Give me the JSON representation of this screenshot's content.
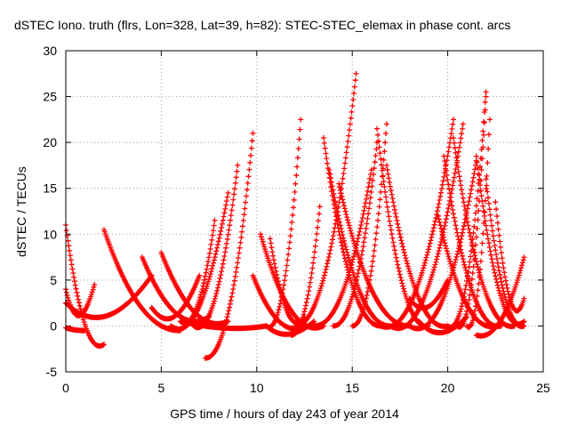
{
  "chart_data": {
    "type": "scatter",
    "title": "dSTEC Iono. truth (flrs, Lon=328, Lat=39, h=82): STEC-STEC_elemax in phase cont. arcs",
    "xlabel": "GPS time / hours of day 243 of year 2014",
    "ylabel": "dSTEC  / TECUs",
    "xlim": [
      0,
      25
    ],
    "ylim": [
      -5,
      30
    ],
    "xticks": [
      "0",
      "5",
      "10",
      "15",
      "20",
      "25"
    ],
    "yticks": [
      "-5",
      "0",
      "5",
      "10",
      "15",
      "20",
      "25",
      "30"
    ],
    "grid": true,
    "marker": "+",
    "color": "#ff0000",
    "arcs": [
      {
        "t0": 0.0,
        "t1": 2.0,
        "a0": 11,
        "a1": -2,
        "min": -3
      },
      {
        "t0": 0.0,
        "t1": 1.5,
        "a0": 4,
        "a1": 4.5,
        "min": -0.5
      },
      {
        "t0": 0.0,
        "t1": 1.0,
        "a0": -0.2,
        "a1": -0.5,
        "min": -0.5
      },
      {
        "t0": 0.0,
        "t1": 4.5,
        "a0": 2.5,
        "a1": 5.5,
        "min": -0.5
      },
      {
        "t0": 2.0,
        "t1": 6.0,
        "a0": 10.5,
        "a1": -0.5,
        "min": -0.5
      },
      {
        "t0": 4.0,
        "t1": 7.5,
        "a0": 7.5,
        "a1": 1.0,
        "min": -0.5
      },
      {
        "t0": 5.0,
        "t1": 8.5,
        "a0": 8.0,
        "a1": 0.5,
        "min": -0.5
      },
      {
        "t0": 4.5,
        "t1": 7.0,
        "a0": 2.0,
        "a1": 5.5,
        "min": -0.5
      },
      {
        "t0": 6.0,
        "t1": 7.8,
        "a0": 0.5,
        "a1": 11.5,
        "min": -0.5
      },
      {
        "t0": 5.5,
        "t1": 8.5,
        "a0": 0.0,
        "a1": 14.5,
        "min": -1.5
      },
      {
        "t0": 7.3,
        "t1": 9.8,
        "a0": -3.5,
        "a1": 21.0,
        "min": -3.5
      },
      {
        "t0": 6.5,
        "t1": 9.0,
        "a0": 0.5,
        "a1": 17.5,
        "min": -2.0
      },
      {
        "t0": 6.0,
        "t1": 10.5,
        "a0": 0.5,
        "a1": 0.0,
        "min": -0.5
      },
      {
        "t0": 9.8,
        "t1": 12.5,
        "a0": 5.5,
        "a1": 0.0,
        "min": -1.0
      },
      {
        "t0": 10.2,
        "t1": 13.5,
        "a0": 10.0,
        "a1": 0.0,
        "min": -1.0
      },
      {
        "t0": 10.7,
        "t1": 12.5,
        "a0": 9.5,
        "a1": 1.0,
        "min": -1.0
      },
      {
        "t0": 10.5,
        "t1": 13.0,
        "a0": 0.0,
        "a1": 0.5,
        "min": -1.5
      },
      {
        "t0": 10.5,
        "t1": 12.3,
        "a0": 0.0,
        "a1": 22.5,
        "min": -1.0
      },
      {
        "t0": 11.8,
        "t1": 13.3,
        "a0": -1.0,
        "a1": 13.0,
        "min": -1.0
      },
      {
        "t0": 13.5,
        "t1": 16.5,
        "a0": 20.5,
        "a1": 0.0,
        "min": 0.0
      },
      {
        "t0": 13.8,
        "t1": 17.0,
        "a0": 17.0,
        "a1": 0.0,
        "min": 0.0
      },
      {
        "t0": 14.3,
        "t1": 18.0,
        "a0": 15.5,
        "a1": 0.0,
        "min": 0.0
      },
      {
        "t0": 12.0,
        "t1": 15.2,
        "a0": 0.0,
        "a1": 27.5,
        "min": 0.0
      },
      {
        "t0": 13.0,
        "t1": 16.0,
        "a0": 0.0,
        "a1": 17.0,
        "min": 0.0
      },
      {
        "t0": 14.0,
        "t1": 16.3,
        "a0": 0.0,
        "a1": 20.0,
        "min": 0.0
      },
      {
        "t0": 15.0,
        "t1": 16.8,
        "a0": 0.0,
        "a1": 22.0,
        "min": 0.0
      },
      {
        "t0": 16.3,
        "t1": 19.0,
        "a0": 21.5,
        "a1": 0.0,
        "min": -0.5
      },
      {
        "t0": 16.8,
        "t1": 20.0,
        "a0": 17.5,
        "a1": 0.0,
        "min": -0.5
      },
      {
        "t0": 16.5,
        "t1": 20.3,
        "a0": 0.0,
        "a1": 22.5,
        "min": -1.0
      },
      {
        "t0": 17.0,
        "t1": 20.8,
        "a0": 0.0,
        "a1": 22.0,
        "min": -1.5
      },
      {
        "t0": 18.0,
        "t1": 21.5,
        "a0": 0.0,
        "a1": 18.0,
        "min": -1.5
      },
      {
        "t0": 19.5,
        "t1": 22.5,
        "a0": 12.0,
        "a1": 0.0,
        "min": -0.5
      },
      {
        "t0": 19.8,
        "t1": 22.8,
        "a0": 18.5,
        "a1": 0.0,
        "min": -0.5
      },
      {
        "t0": 20.3,
        "t1": 23.5,
        "a0": 20.5,
        "a1": 0.0,
        "min": -0.5
      },
      {
        "t0": 20.0,
        "t1": 22.0,
        "a0": 0.0,
        "a1": 25.5,
        "min": -1.0
      },
      {
        "t0": 20.5,
        "t1": 22.0,
        "a0": 0.0,
        "a1": 25.0,
        "min": -1.0
      },
      {
        "t0": 21.0,
        "t1": 22.2,
        "a0": 0.0,
        "a1": 22.5,
        "min": -1.0
      },
      {
        "t0": 21.5,
        "t1": 24.0,
        "a0": 18.5,
        "a1": 0.5,
        "min": -1.0
      },
      {
        "t0": 22.0,
        "t1": 24.0,
        "a0": 16.0,
        "a1": 0.0,
        "min": -0.5
      },
      {
        "t0": 22.5,
        "t1": 24.0,
        "a0": 13.5,
        "a1": 3.0,
        "min": -0.5
      },
      {
        "t0": 21.5,
        "t1": 24.0,
        "a0": -1.0,
        "a1": 7.5,
        "min": -1.5
      },
      {
        "t0": 18.0,
        "t1": 20.0,
        "a0": 3.0,
        "a1": 5.0,
        "min": 1.0
      },
      {
        "t0": 18.5,
        "t1": 21.0,
        "a0": 0.5,
        "a1": 1.0,
        "min": -1.5
      }
    ]
  }
}
